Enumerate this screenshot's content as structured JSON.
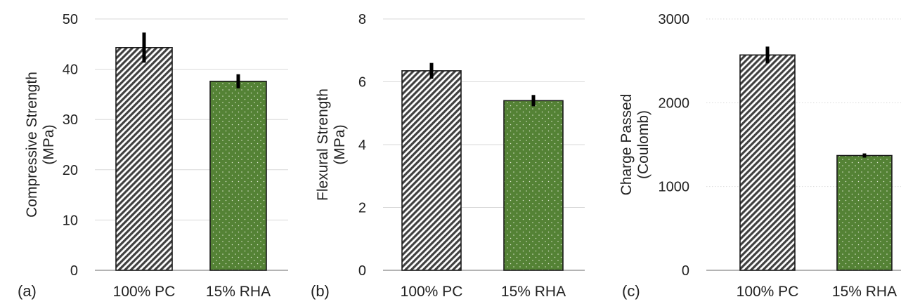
{
  "figure": {
    "panel_labels": [
      "(a)",
      "(b)",
      "(c)"
    ]
  },
  "colors": {
    "pc_bar": "#404040",
    "rha_bar": "#548235",
    "grid": "#d9d9d9",
    "axis": "#888888",
    "error_bar": "#000000"
  },
  "chart_data": [
    {
      "type": "bar",
      "panel": "(a)",
      "categories": [
        "100% PC",
        "15% RHA"
      ],
      "values": [
        44.3,
        37.6
      ],
      "errors": [
        3.0,
        1.4
      ],
      "ylabel": [
        "Compressive Strength",
        "(MPa)"
      ],
      "ylim": [
        0,
        50
      ],
      "yticks": [
        0,
        10,
        20,
        30,
        40,
        50
      ],
      "grid": true,
      "gridStyle": "solid"
    },
    {
      "type": "bar",
      "panel": "(b)",
      "categories": [
        "100% PC",
        "15% RHA"
      ],
      "values": [
        6.35,
        5.4
      ],
      "errors": [
        0.25,
        0.18
      ],
      "ylabel": [
        "Flexural Strength",
        "(MPa)"
      ],
      "ylim": [
        0,
        8
      ],
      "yticks": [
        0,
        2,
        4,
        6,
        8
      ],
      "grid": true,
      "gridStyle": "solid"
    },
    {
      "type": "bar",
      "panel": "(c)",
      "categories": [
        "100% PC",
        "15% RHA"
      ],
      "values": [
        2570,
        1370
      ],
      "errors": [
        100,
        25
      ],
      "ylabel": [
        "Charge Passed",
        "(Coulomb)"
      ],
      "ylim": [
        0,
        3000
      ],
      "yticks": [
        0,
        1000,
        2000,
        3000
      ],
      "grid": true,
      "gridStyle": "dotted"
    }
  ]
}
